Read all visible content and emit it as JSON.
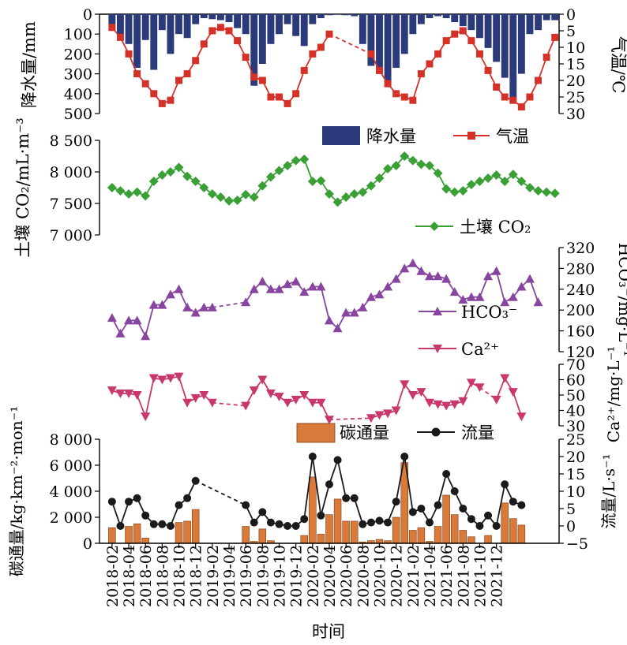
{
  "x_axis": {
    "label": "时间",
    "tick_labels": [
      "2018-02",
      "2018-04",
      "2018-06",
      "2018-08",
      "2018-10",
      "2018-12",
      "2019-02",
      "2019-04",
      "2019-06",
      "2019-08",
      "2019-10",
      "2019-12",
      "2020-02",
      "2020-04",
      "2020-06",
      "2020-08",
      "2020-10",
      "2020-12",
      "2021-02",
      "2021-04",
      "2021-06",
      "2021-08",
      "2021-10",
      "2021-12"
    ]
  },
  "chart_data": [
    {
      "type": "bar",
      "panel": "precipitation-temperature",
      "ylabel_left": "降水量/mm",
      "ylabel_right": "气温/℃",
      "ylim_left": [
        500,
        0
      ],
      "ylim_right": [
        30,
        0
      ],
      "yticks_left": [
        "0",
        "100",
        "200",
        "300",
        "400",
        "500"
      ],
      "yticks_right": [
        "0",
        "5",
        "10",
        "15",
        "20",
        "25",
        "30"
      ],
      "series": [
        {
          "name": "降水量",
          "color": "#2b3a7a",
          "values": [
            null,
            50,
            100,
            150,
            270,
            130,
            280,
            80,
            200,
            100,
            120,
            50,
            20,
            25,
            30,
            40,
            70,
            100,
            360,
            250,
            150,
            100,
            50,
            110,
            160,
            50,
            20,
            5,
            2,
            5,
            10,
            150,
            260,
            300,
            340,
            270,
            200,
            100,
            50,
            20,
            10,
            20,
            40,
            60,
            80,
            120,
            170,
            240,
            320,
            440,
            300,
            100,
            80,
            30,
            30
          ]
        },
        {
          "name": "气温",
          "color": "#d43228",
          "values": [
            null,
            4,
            7,
            12,
            18,
            21,
            24,
            27,
            26,
            20,
            18,
            14,
            9,
            5,
            4,
            5,
            8,
            13,
            19,
            20,
            25,
            25,
            27,
            24,
            17,
            12,
            10,
            6,
            null,
            null,
            null,
            null,
            12,
            17,
            21,
            24,
            25,
            26,
            18,
            15,
            12,
            8,
            6,
            5,
            8,
            12,
            17,
            22,
            25,
            26,
            28,
            25,
            20,
            13,
            7
          ]
        }
      ]
    },
    {
      "type": "line",
      "panel": "soil-co2",
      "ylabel": "土壤 CO₂/mL·m⁻³",
      "ylim": [
        7000,
        8500
      ],
      "yticks": [
        "7 000",
        "7 500",
        "8 000",
        "8 500"
      ],
      "series": [
        {
          "name": "土壤 CO₂",
          "color": "#3aa035",
          "values": [
            null,
            7750,
            7700,
            7650,
            7680,
            7620,
            7850,
            7950,
            8000,
            8070,
            7930,
            7850,
            7750,
            7650,
            7600,
            7540,
            7550,
            7640,
            7600,
            7780,
            7920,
            8020,
            8100,
            8180,
            8200,
            7850,
            7860,
            7650,
            7520,
            7600,
            7650,
            7680,
            7780,
            7900,
            8050,
            8100,
            8250,
            8180,
            8120,
            8100,
            7980,
            7730,
            7680,
            7700,
            7800,
            7850,
            7900,
            7950,
            7850,
            7960,
            7850,
            7750,
            7700,
            7680,
            7660
          ]
        }
      ]
    },
    {
      "type": "line",
      "panel": "hco3",
      "ylabel": "HCO₃⁻/mg·L⁻¹",
      "ylim": [
        120,
        320
      ],
      "yticks": [
        "120",
        "160",
        "200",
        "240",
        "280",
        "320"
      ],
      "series": [
        {
          "name": "HCO₃⁻",
          "color": "#8845a0",
          "values": [
            null,
            185,
            155,
            180,
            180,
            150,
            210,
            210,
            230,
            240,
            205,
            195,
            205,
            205,
            null,
            null,
            null,
            215,
            240,
            255,
            240,
            240,
            250,
            255,
            235,
            245,
            245,
            180,
            165,
            195,
            195,
            205,
            225,
            230,
            245,
            260,
            280,
            290,
            275,
            265,
            265,
            260,
            235,
            220,
            225,
            225,
            265,
            275,
            215,
            225,
            245,
            260,
            215,
            null,
            null
          ]
        }
      ]
    },
    {
      "type": "line",
      "panel": "ca2",
      "ylabel": "Ca²⁺/mg·L⁻¹",
      "ylim": [
        30,
        70
      ],
      "yticks": [
        "30",
        "40",
        "50",
        "60",
        "70"
      ],
      "series": [
        {
          "name": "Ca²⁺",
          "color": "#c8386b",
          "values": [
            null,
            53,
            51,
            51,
            50,
            36,
            61,
            60,
            61,
            62,
            45,
            48,
            50,
            45,
            null,
            null,
            null,
            43,
            53,
            60,
            51,
            49,
            45,
            47,
            50,
            45,
            45,
            34,
            null,
            null,
            null,
            null,
            35,
            37,
            38,
            40,
            57,
            50,
            52,
            45,
            44,
            43,
            44,
            46,
            58,
            55,
            null,
            47,
            61,
            52,
            36,
            null,
            null,
            null,
            null
          ]
        }
      ]
    },
    {
      "type": "bar",
      "panel": "carbon-flux-discharge",
      "ylabel_left": "碳通量/kg·km⁻²·mon⁻¹",
      "ylabel_right": "流量/L·s⁻¹",
      "ylim_left": [
        0,
        8000
      ],
      "ylim_right": [
        -5,
        25
      ],
      "yticks_left": [
        "0",
        "2 000",
        "4 000",
        "6 000",
        "8 000"
      ],
      "yticks_right": [
        "−5",
        "0",
        "5",
        "10",
        "15",
        "20",
        "25"
      ],
      "series": [
        {
          "name": "碳通量",
          "color": "#d9793a",
          "values": [
            null,
            1200,
            null,
            1300,
            1500,
            400,
            null,
            null,
            null,
            1600,
            1700,
            2600,
            null,
            null,
            null,
            null,
            null,
            1300,
            150,
            1100,
            200,
            null,
            null,
            null,
            600,
            5100,
            700,
            2200,
            3400,
            1700,
            1700,
            100,
            200,
            300,
            200,
            2000,
            6200,
            1000,
            1200,
            150,
            1300,
            3700,
            2200,
            1000,
            500,
            null,
            600,
            null,
            3100,
            1900,
            1400,
            null,
            null,
            null,
            null
          ]
        },
        {
          "name": "流量",
          "color": "#1a1a1a",
          "values": [
            null,
            7,
            0,
            7,
            8,
            3,
            0.5,
            0.5,
            0,
            6,
            8,
            13,
            null,
            null,
            null,
            null,
            null,
            6,
            1,
            4,
            1,
            0.5,
            0,
            0,
            2,
            20,
            3,
            12,
            19,
            8,
            8,
            0.5,
            1,
            1.5,
            1,
            7,
            20,
            4,
            5,
            1,
            6,
            15,
            10,
            5,
            2,
            0,
            3,
            0,
            12,
            7,
            6,
            null,
            null,
            null,
            null
          ]
        }
      ]
    }
  ]
}
